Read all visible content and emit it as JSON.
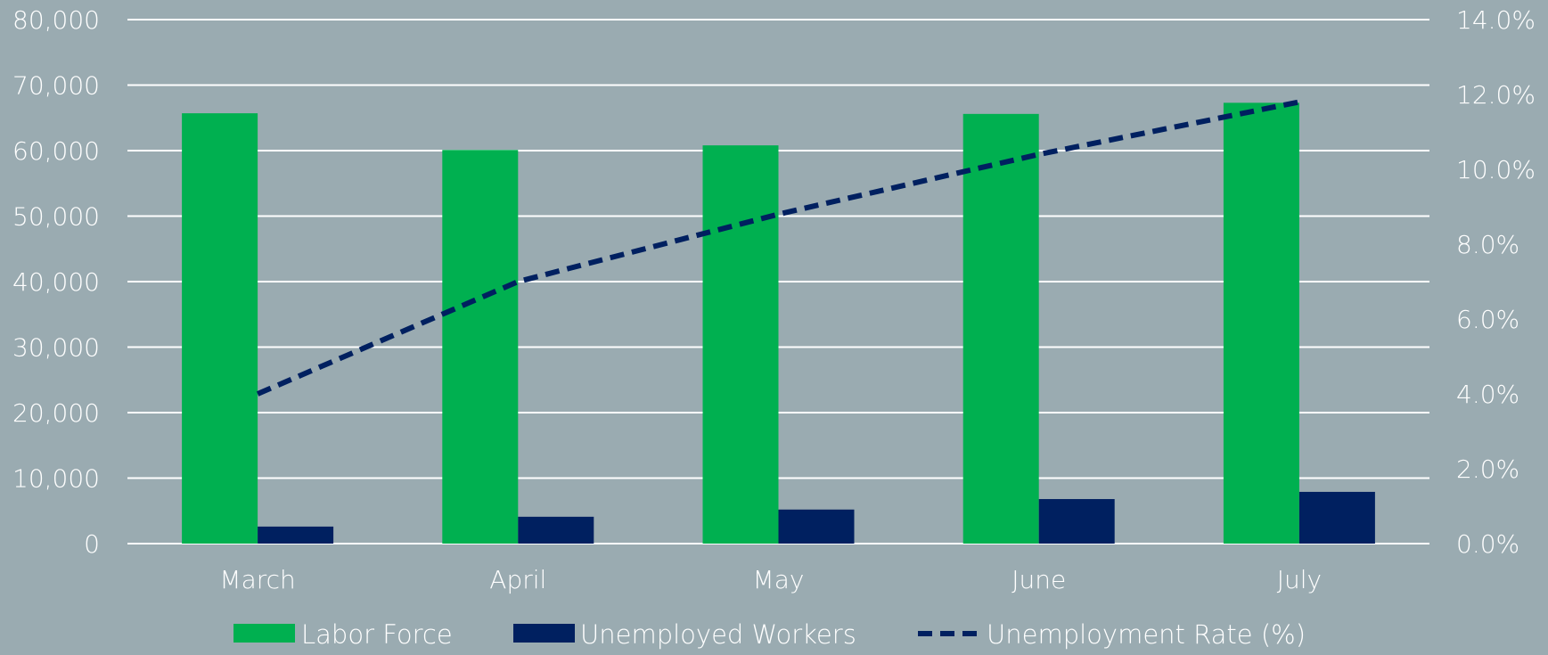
{
  "chart_data": {
    "type": "bar",
    "categories": [
      "March",
      "April",
      "May",
      "June",
      "July"
    ],
    "series": [
      {
        "name": "Labor Force",
        "type": "bar",
        "axis": "left",
        "color": "#00b050",
        "values": [
          65700,
          60100,
          60800,
          65600,
          67300
        ]
      },
      {
        "name": "Unemployed Workers",
        "type": "bar",
        "axis": "left",
        "color": "#002060",
        "values": [
          2600,
          4100,
          5200,
          6800,
          7900
        ]
      },
      {
        "name": "Unemployment Rate (%)",
        "type": "line",
        "axis": "right",
        "color": "#002060",
        "dashed": true,
        "values": [
          4.0,
          7.0,
          8.8,
          10.4,
          11.8
        ]
      }
    ],
    "y_left": {
      "min": 0,
      "max": 80000,
      "step": 10000,
      "ticks": [
        "0",
        "10,000",
        "20,000",
        "30,000",
        "40,000",
        "50,000",
        "60,000",
        "70,000",
        "80,000"
      ]
    },
    "y_right": {
      "min": 0,
      "max": 14,
      "step": 2,
      "ticks": [
        "0.0%",
        "2.0%",
        "4.0%",
        "6.0%",
        "8.0%",
        "10.0%",
        "12.0%",
        "14.0%"
      ]
    },
    "grid": true,
    "legend_position": "bottom",
    "background_color": "#9aabb1",
    "gridline_color": "#ffffff",
    "text_color": "#ffffff"
  }
}
